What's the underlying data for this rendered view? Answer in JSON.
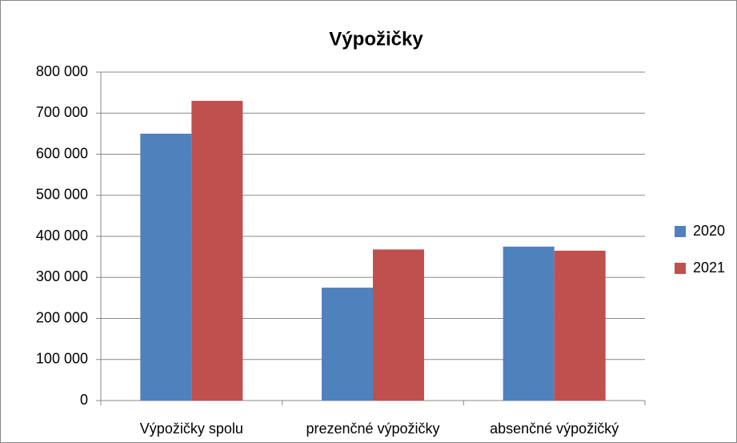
{
  "chart_data": {
    "type": "bar",
    "title": "Výpožičky",
    "categories": [
      "Výpožičky spolu",
      "prezenčné výpožičky",
      "absenčné výpožičký"
    ],
    "series": [
      {
        "name": "2020",
        "color": "#4f81bd",
        "values": [
          650000,
          275000,
          375000
        ]
      },
      {
        "name": "2021",
        "color": "#c0504d",
        "values": [
          730000,
          368000,
          365000
        ]
      }
    ],
    "ylim": [
      0,
      800000
    ],
    "yticks": [
      0,
      {
        "value": 100000,
        "label": "100 000"
      },
      {
        "value": 200000,
        "label": "200 000"
      },
      {
        "value": 300000,
        "label": "300 000"
      },
      {
        "value": 400000,
        "label": "400 000"
      },
      {
        "value": 500000,
        "label": "500 000"
      },
      {
        "value": 600000,
        "label": "600 000"
      },
      {
        "value": 700000,
        "label": "700 000"
      },
      {
        "value": 800000,
        "label": "800 000"
      }
    ],
    "grid": true,
    "legend": "right"
  }
}
